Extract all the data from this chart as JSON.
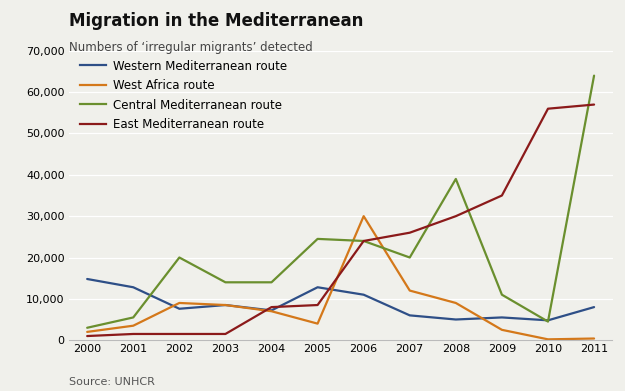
{
  "title": "Migration in the Mediterranean",
  "subtitle": "Numbers of ‘irregular migrants’ detected",
  "source": "Source: UNHCR",
  "years": [
    2000,
    2001,
    2002,
    2003,
    2004,
    2005,
    2006,
    2007,
    2008,
    2009,
    2010,
    2011
  ],
  "series": {
    "Western Mediterranean route": {
      "color": "#2e4f87",
      "values": [
        14800,
        12800,
        7600,
        8500,
        7200,
        12800,
        11000,
        6000,
        5000,
        5500,
        4800,
        8000
      ]
    },
    "West Africa route": {
      "color": "#d4781a",
      "values": [
        2000,
        3500,
        9000,
        8500,
        7000,
        4000,
        30000,
        12000,
        9000,
        2500,
        200,
        400
      ]
    },
    "Central Mediterranean route": {
      "color": "#6a8f2e",
      "values": [
        3000,
        5500,
        20000,
        14000,
        14000,
        24500,
        24000,
        20000,
        39000,
        11000,
        4500,
        64000
      ]
    },
    "East Mediterranean route": {
      "color": "#8b1a1a",
      "values": [
        1000,
        1500,
        1500,
        1500,
        8000,
        8500,
        24000,
        26000,
        30000,
        35000,
        56000,
        57000
      ]
    }
  },
  "ylim": [
    0,
    70000
  ],
  "yticks": [
    0,
    10000,
    20000,
    30000,
    40000,
    50000,
    60000,
    70000
  ],
  "background_color": "#f0f0eb",
  "grid_color": "#ffffff",
  "title_fontsize": 12,
  "subtitle_fontsize": 8.5,
  "legend_fontsize": 8.5,
  "tick_fontsize": 8,
  "source_fontsize": 8
}
